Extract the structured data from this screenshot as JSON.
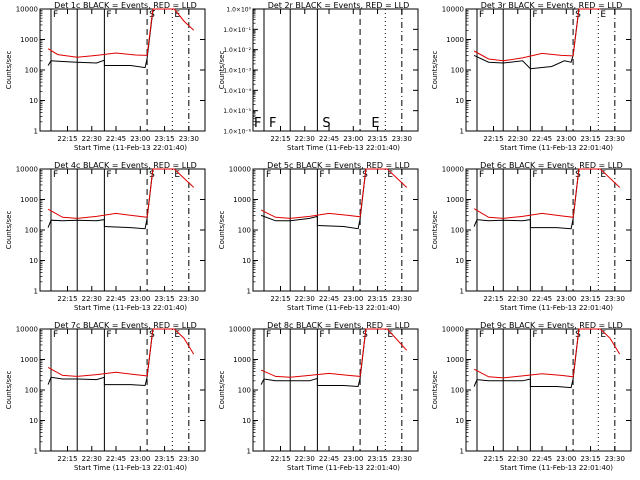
{
  "chart_data": [
    {
      "type": "line",
      "title": "Det 1c BLACK = Events, RED = LLD",
      "ylabel": "Counts/sec",
      "xlabel": "Start Time (11-Feb-13 22:01:40)",
      "x_ticks": [
        "22:15",
        "22:30",
        "22:45",
        "23:00",
        "23:15",
        "23:30"
      ],
      "yscale": "log",
      "ylim": [
        1,
        10000
      ],
      "y_ticks": [
        "1",
        "10",
        "100",
        "1000",
        "10000"
      ],
      "markers": [
        "F",
        "F",
        "S",
        "E"
      ],
      "series": [
        {
          "color": "#000000",
          "values": [
            [
              22.05,
              140
            ],
            [
              22.08,
              200
            ],
            [
              22.2,
              190
            ],
            [
              22.35,
              180
            ],
            [
              22.55,
              170
            ],
            [
              22.63,
              210
            ],
            [
              22.63,
              140
            ],
            [
              22.9,
              140
            ],
            [
              23.05,
              120
            ],
            [
              23.07,
              240
            ],
            [
              23.13,
              9000
            ],
            [
              23.15,
              9000
            ]
          ]
        },
        {
          "color": "#e00000",
          "values": [
            [
              22.05,
              500
            ],
            [
              22.15,
              320
            ],
            [
              22.35,
              260
            ],
            [
              22.55,
              300
            ],
            [
              22.75,
              360
            ],
            [
              22.95,
              310
            ],
            [
              23.07,
              300
            ],
            [
              23.13,
              10000
            ],
            [
              23.35,
              10000
            ],
            [
              23.45,
              4000
            ],
            [
              23.55,
              2000
            ]
          ]
        }
      ]
    },
    {
      "type": "line",
      "title": "Det 2r BLACK = Events, RED = LLD",
      "ylabel": "Counts/sec",
      "xlabel": "Start Time (11-Feb-13 22:01:40)",
      "x_ticks": [
        "22:15",
        "22:30",
        "22:45",
        "23:00",
        "23:15",
        "23:30"
      ],
      "yscale": "log",
      "ylim": [
        1e-06,
        1
      ],
      "y_ticks": [
        "1.0×10⁻⁶",
        "1.0×10⁻⁵",
        "1.0×10⁻⁴",
        "1.0×10⁻³",
        "1.0×10⁻²",
        "1.0×10⁻¹",
        "1.0×10⁰"
      ],
      "markers": [
        "F",
        "F",
        "S",
        "E"
      ],
      "series": []
    },
    {
      "type": "line",
      "title": "Det 3r BLACK = Events, RED = LLD",
      "ylabel": "Counts/sec",
      "xlabel": "Start Time (11-Feb-13 22:01:40)",
      "x_ticks": [
        "22:15",
        "22:30",
        "22:45",
        "23:00",
        "23:15",
        "23:30"
      ],
      "yscale": "log",
      "ylim": [
        1,
        10000
      ],
      "y_ticks": [
        "1",
        "10",
        "100",
        "1000",
        "10000"
      ],
      "markers": [
        "F",
        "F",
        "S",
        "E"
      ],
      "series": [
        {
          "color": "#000000",
          "values": [
            [
              22.05,
              300
            ],
            [
              22.2,
              180
            ],
            [
              22.35,
              170
            ],
            [
              22.55,
              200
            ],
            [
              22.63,
              110
            ],
            [
              22.85,
              130
            ],
            [
              22.98,
              200
            ],
            [
              23.05,
              180
            ],
            [
              23.07,
              300
            ],
            [
              23.13,
              10000
            ]
          ]
        },
        {
          "color": "#e00000",
          "values": [
            [
              22.05,
              420
            ],
            [
              22.2,
              230
            ],
            [
              22.35,
              200
            ],
            [
              22.55,
              250
            ],
            [
              22.75,
              350
            ],
            [
              22.95,
              300
            ],
            [
              23.07,
              290
            ],
            [
              23.13,
              10000
            ],
            [
              23.35,
              10000
            ]
          ]
        }
      ]
    },
    {
      "type": "line",
      "title": "Det 4c BLACK = Events, RED = LLD",
      "ylabel": "Counts/sec",
      "xlabel": "Start Time (11-Feb-13 22:01:40)",
      "x_ticks": [
        "22:15",
        "22:30",
        "22:45",
        "23:00",
        "23:15",
        "23:30"
      ],
      "yscale": "log",
      "ylim": [
        1,
        10000
      ],
      "y_ticks": [
        "1",
        "10",
        "100",
        "1000",
        "10000"
      ],
      "markers": [
        "F",
        "F",
        "S",
        "E"
      ],
      "series": [
        {
          "color": "#000000",
          "values": [
            [
              22.05,
              120
            ],
            [
              22.08,
              210
            ],
            [
              22.2,
              200
            ],
            [
              22.35,
              210
            ],
            [
              22.55,
              200
            ],
            [
              22.63,
              220
            ],
            [
              22.63,
              130
            ],
            [
              22.9,
              120
            ],
            [
              23.05,
              110
            ],
            [
              23.07,
              240
            ],
            [
              23.13,
              10000
            ]
          ]
        },
        {
          "color": "#e00000",
          "values": [
            [
              22.05,
              480
            ],
            [
              22.2,
              260
            ],
            [
              22.35,
              240
            ],
            [
              22.55,
              280
            ],
            [
              22.75,
              350
            ],
            [
              22.95,
              290
            ],
            [
              23.07,
              260
            ],
            [
              23.13,
              10000
            ],
            [
              23.35,
              10000
            ],
            [
              23.45,
              5000
            ],
            [
              23.55,
              2500
            ]
          ]
        }
      ]
    },
    {
      "type": "line",
      "title": "Det 5c BLACK = Events, RED = LLD",
      "ylabel": "Counts/sec",
      "xlabel": "Start Time (11-Feb-13 22:01:40)",
      "x_ticks": [
        "22:15",
        "22:30",
        "22:45",
        "23:00",
        "23:15",
        "23:30"
      ],
      "yscale": "log",
      "ylim": [
        1,
        10000
      ],
      "y_ticks": [
        "1",
        "10",
        "100",
        "1000",
        "10000"
      ],
      "markers": [
        "F",
        "F",
        "S",
        "E"
      ],
      "series": [
        {
          "color": "#000000",
          "values": [
            [
              22.05,
              300
            ],
            [
              22.2,
              200
            ],
            [
              22.35,
              200
            ],
            [
              22.55,
              240
            ],
            [
              22.63,
              280
            ],
            [
              22.63,
              140
            ],
            [
              22.9,
              130
            ],
            [
              23.05,
              110
            ],
            [
              23.07,
              230
            ],
            [
              23.13,
              10000
            ]
          ]
        },
        {
          "color": "#e00000",
          "values": [
            [
              22.05,
              450
            ],
            [
              22.2,
              260
            ],
            [
              22.35,
              240
            ],
            [
              22.55,
              280
            ],
            [
              22.75,
              350
            ],
            [
              22.95,
              300
            ],
            [
              23.07,
              270
            ],
            [
              23.13,
              10000
            ],
            [
              23.35,
              10000
            ],
            [
              23.45,
              5000
            ],
            [
              23.55,
              2500
            ]
          ]
        }
      ]
    },
    {
      "type": "line",
      "title": "Det 6c BLACK = Events, RED = LLD",
      "ylabel": "Counts/sec",
      "xlabel": "Start Time (11-Feb-13 22:01:40)",
      "x_ticks": [
        "22:15",
        "22:30",
        "22:45",
        "23:00",
        "23:15",
        "23:30"
      ],
      "yscale": "log",
      "ylim": [
        1,
        10000
      ],
      "y_ticks": [
        "1",
        "10",
        "100",
        "1000",
        "10000"
      ],
      "markers": [
        "F",
        "F",
        "S",
        "E"
      ],
      "series": [
        {
          "color": "#000000",
          "values": [
            [
              22.05,
              130
            ],
            [
              22.08,
              220
            ],
            [
              22.2,
              200
            ],
            [
              22.35,
              210
            ],
            [
              22.55,
              200
            ],
            [
              22.63,
              220
            ],
            [
              22.63,
              120
            ],
            [
              22.9,
              120
            ],
            [
              23.05,
              110
            ],
            [
              23.07,
              230
            ],
            [
              23.13,
              10000
            ]
          ]
        },
        {
          "color": "#e00000",
          "values": [
            [
              22.05,
              500
            ],
            [
              22.2,
              260
            ],
            [
              22.35,
              240
            ],
            [
              22.55,
              280
            ],
            [
              22.75,
              350
            ],
            [
              22.95,
              290
            ],
            [
              23.07,
              260
            ],
            [
              23.13,
              10000
            ],
            [
              23.35,
              10000
            ],
            [
              23.45,
              5000
            ],
            [
              23.55,
              2500
            ]
          ]
        }
      ]
    },
    {
      "type": "line",
      "title": "Det 7c BLACK = Events, RED = LLD",
      "ylabel": "Counts/sec",
      "xlabel": "Start Time (11-Feb-13 22:01:40)",
      "x_ticks": [
        "22:15",
        "22:30",
        "22:45",
        "23:00",
        "23:15",
        "23:30"
      ],
      "yscale": "log",
      "ylim": [
        1,
        10000
      ],
      "y_ticks": [
        "1",
        "10",
        "100",
        "1000",
        "10000"
      ],
      "markers": [
        "F",
        "F",
        "S",
        "E"
      ],
      "series": [
        {
          "color": "#000000",
          "values": [
            [
              22.05,
              150
            ],
            [
              22.08,
              260
            ],
            [
              22.2,
              230
            ],
            [
              22.35,
              230
            ],
            [
              22.55,
              220
            ],
            [
              22.63,
              260
            ],
            [
              22.63,
              150
            ],
            [
              22.9,
              150
            ],
            [
              23.05,
              140
            ],
            [
              23.07,
              260
            ],
            [
              23.13,
              10000
            ]
          ]
        },
        {
          "color": "#e00000",
          "values": [
            [
              22.05,
              550
            ],
            [
              22.2,
              300
            ],
            [
              22.35,
              280
            ],
            [
              22.55,
              320
            ],
            [
              22.75,
              380
            ],
            [
              22.95,
              320
            ],
            [
              23.07,
              290
            ],
            [
              23.13,
              10000
            ],
            [
              23.35,
              10000
            ],
            [
              23.45,
              5000
            ],
            [
              23.55,
              1500
            ]
          ]
        }
      ]
    },
    {
      "type": "line",
      "title": "Det 8c BLACK = Events, RED = LLD",
      "ylabel": "Counts/sec",
      "xlabel": "Start Time (11-Feb-13 22:01:40)",
      "x_ticks": [
        "22:15",
        "22:30",
        "22:45",
        "23:00",
        "23:15",
        "23:30"
      ],
      "yscale": "log",
      "ylim": [
        1,
        10000
      ],
      "y_ticks": [
        "1",
        "10",
        "100",
        "1000",
        "10000"
      ],
      "markers": [
        "F",
        "F",
        "S",
        "E"
      ],
      "series": [
        {
          "color": "#000000",
          "values": [
            [
              22.05,
              150
            ],
            [
              22.08,
              230
            ],
            [
              22.2,
              200
            ],
            [
              22.35,
              200
            ],
            [
              22.55,
              200
            ],
            [
              22.63,
              240
            ],
            [
              22.63,
              140
            ],
            [
              22.9,
              140
            ],
            [
              23.05,
              130
            ],
            [
              23.07,
              240
            ],
            [
              23.13,
              10000
            ]
          ]
        },
        {
          "color": "#e00000",
          "values": [
            [
              22.05,
              450
            ],
            [
              22.2,
              280
            ],
            [
              22.35,
              260
            ],
            [
              22.55,
              300
            ],
            [
              22.75,
              350
            ],
            [
              22.95,
              300
            ],
            [
              23.07,
              280
            ],
            [
              23.13,
              10000
            ],
            [
              23.35,
              10000
            ],
            [
              23.45,
              4500
            ],
            [
              23.55,
              2000
            ]
          ]
        }
      ]
    },
    {
      "type": "line",
      "title": "Det 9c BLACK = Events, RED = LLD",
      "ylabel": "Counts/sec",
      "xlabel": "Start Time (11-Feb-13 22:01:40)",
      "x_ticks": [
        "22:15",
        "22:30",
        "22:45",
        "23:00",
        "23:15",
        "23:30"
      ],
      "yscale": "log",
      "ylim": [
        1,
        10000
      ],
      "y_ticks": [
        "1",
        "10",
        "100",
        "1000",
        "10000"
      ],
      "markers": [
        "F",
        "F",
        "S",
        "E"
      ],
      "series": [
        {
          "color": "#000000",
          "values": [
            [
              22.05,
              130
            ],
            [
              22.08,
              220
            ],
            [
              22.2,
              200
            ],
            [
              22.35,
              200
            ],
            [
              22.55,
              200
            ],
            [
              22.63,
              230
            ],
            [
              22.63,
              130
            ],
            [
              22.9,
              130
            ],
            [
              23.05,
              120
            ],
            [
              23.07,
              230
            ],
            [
              23.13,
              10000
            ]
          ]
        },
        {
          "color": "#e00000",
          "values": [
            [
              22.05,
              480
            ],
            [
              22.2,
              270
            ],
            [
              22.35,
              250
            ],
            [
              22.55,
              290
            ],
            [
              22.75,
              340
            ],
            [
              22.95,
              300
            ],
            [
              23.07,
              270
            ],
            [
              23.13,
              10000
            ],
            [
              23.35,
              10000
            ],
            [
              23.45,
              5000
            ],
            [
              23.55,
              1500
            ]
          ]
        }
      ]
    }
  ]
}
